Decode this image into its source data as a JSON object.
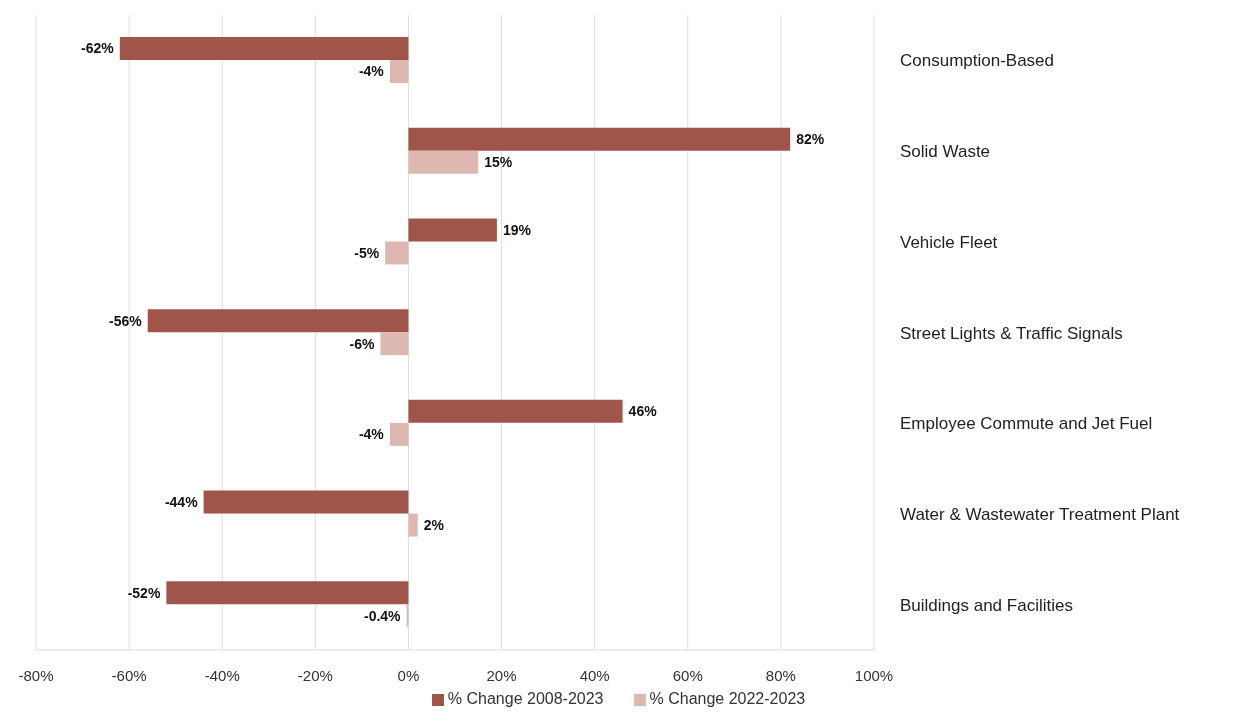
{
  "chart_data": {
    "type": "bar",
    "orientation": "horizontal",
    "categories": [
      "Consumption-Based",
      "Solid Waste",
      "Vehicle Fleet",
      "Street Lights & Traffic Signals",
      "Employee Commute and Jet Fuel",
      "Water & Wastewater Treatment Plant",
      "Buildings and Facilities"
    ],
    "series": [
      {
        "name": "% Change 2008-2023",
        "color": "#a0554a",
        "values": [
          -62,
          82,
          19,
          -56,
          46,
          -44,
          -52
        ],
        "value_labels": [
          "-62%",
          "82%",
          "19%",
          "-56%",
          "46%",
          "-44%",
          "-52%"
        ]
      },
      {
        "name": "% Change 2022-2023",
        "color": "#ddb8b0",
        "values": [
          -4,
          15,
          -5,
          -6,
          -4,
          2,
          -0.4
        ],
        "value_labels": [
          "-4%",
          "15%",
          "-5%",
          "-6%",
          "-4%",
          "2%",
          "-0.4%"
        ]
      }
    ],
    "xlim": [
      -80,
      100
    ],
    "xticks": [
      {
        "value": -80,
        "label": "-80%"
      },
      {
        "value": -60,
        "label": "-60%"
      },
      {
        "value": -40,
        "label": "-40%"
      },
      {
        "value": -20,
        "label": "-20%"
      },
      {
        "value": 0,
        "label": "0%"
      },
      {
        "value": 20,
        "label": "20%"
      },
      {
        "value": 40,
        "label": "40%"
      },
      {
        "value": 60,
        "label": "60%"
      },
      {
        "value": 80,
        "label": "80%"
      },
      {
        "value": 100,
        "label": "100%"
      }
    ],
    "grid": "x",
    "legend": "bottom"
  }
}
